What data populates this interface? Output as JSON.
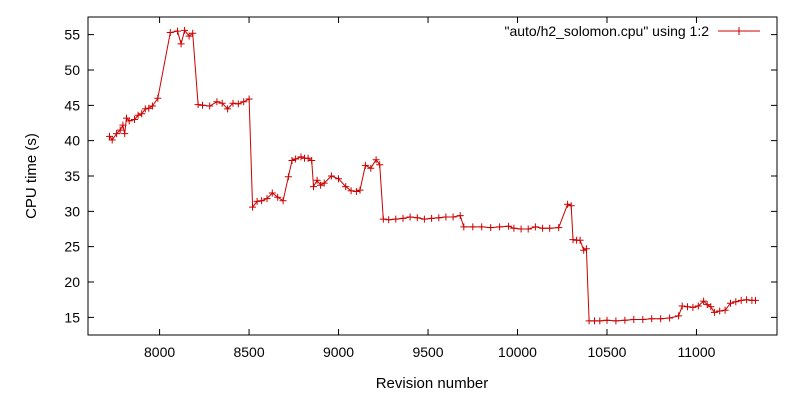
{
  "chart_data": {
    "type": "line",
    "title": "",
    "xlabel": "Revision number",
    "ylabel": "CPU time (s)",
    "xlim": [
      7600,
      11450
    ],
    "ylim": [
      12.5,
      57.5
    ],
    "xticks": [
      8000,
      8500,
      9000,
      9500,
      10000,
      10500,
      11000
    ],
    "yticks": [
      15,
      20,
      25,
      30,
      35,
      40,
      45,
      50,
      55
    ],
    "grid": false,
    "legend_position": "top-right",
    "series": [
      {
        "name": "\"auto/h2_solomon.cpu\" using 1:2",
        "color": "#cc0000",
        "marker": "plus",
        "points": [
          [
            7720,
            40.6
          ],
          [
            7735,
            40.1
          ],
          [
            7760,
            41.0
          ],
          [
            7780,
            41.5
          ],
          [
            7795,
            42.2
          ],
          [
            7805,
            41.0
          ],
          [
            7815,
            43.2
          ],
          [
            7830,
            42.8
          ],
          [
            7860,
            43.0
          ],
          [
            7880,
            43.6
          ],
          [
            7900,
            43.8
          ],
          [
            7920,
            44.5
          ],
          [
            7940,
            44.6
          ],
          [
            7960,
            44.9
          ],
          [
            7990,
            46.0
          ],
          [
            8060,
            55.3
          ],
          [
            8100,
            55.5
          ],
          [
            8120,
            53.7
          ],
          [
            8140,
            55.6
          ],
          [
            8165,
            54.8
          ],
          [
            8185,
            55.2
          ],
          [
            8215,
            45.1
          ],
          [
            8240,
            45.0
          ],
          [
            8280,
            44.9
          ],
          [
            8320,
            45.5
          ],
          [
            8350,
            45.3
          ],
          [
            8380,
            44.5
          ],
          [
            8410,
            45.3
          ],
          [
            8440,
            45.2
          ],
          [
            8470,
            45.5
          ],
          [
            8500,
            45.9
          ],
          [
            8520,
            30.6
          ],
          [
            8545,
            31.4
          ],
          [
            8570,
            31.5
          ],
          [
            8600,
            31.8
          ],
          [
            8630,
            32.6
          ],
          [
            8660,
            32.0
          ],
          [
            8690,
            31.5
          ],
          [
            8720,
            34.9
          ],
          [
            8740,
            37.2
          ],
          [
            8760,
            37.4
          ],
          [
            8790,
            37.7
          ],
          [
            8810,
            37.5
          ],
          [
            8830,
            37.5
          ],
          [
            8850,
            37.2
          ],
          [
            8860,
            33.5
          ],
          [
            8880,
            34.4
          ],
          [
            8900,
            33.7
          ],
          [
            8920,
            34.0
          ],
          [
            8960,
            35.0
          ],
          [
            9000,
            34.6
          ],
          [
            9040,
            33.5
          ],
          [
            9070,
            32.9
          ],
          [
            9100,
            32.8
          ],
          [
            9120,
            33.0
          ],
          [
            9150,
            36.5
          ],
          [
            9180,
            36.1
          ],
          [
            9210,
            37.3
          ],
          [
            9230,
            36.6
          ],
          [
            9250,
            28.9
          ],
          [
            9280,
            28.8
          ],
          [
            9320,
            28.9
          ],
          [
            9360,
            29.0
          ],
          [
            9400,
            29.2
          ],
          [
            9440,
            29.1
          ],
          [
            9480,
            28.9
          ],
          [
            9520,
            29.0
          ],
          [
            9560,
            29.1
          ],
          [
            9600,
            29.2
          ],
          [
            9640,
            29.2
          ],
          [
            9680,
            29.4
          ],
          [
            9700,
            27.8
          ],
          [
            9750,
            27.8
          ],
          [
            9800,
            27.8
          ],
          [
            9850,
            27.7
          ],
          [
            9900,
            27.8
          ],
          [
            9950,
            27.9
          ],
          [
            9980,
            27.6
          ],
          [
            10020,
            27.5
          ],
          [
            10060,
            27.5
          ],
          [
            10100,
            27.8
          ],
          [
            10140,
            27.6
          ],
          [
            10180,
            27.6
          ],
          [
            10230,
            27.7
          ],
          [
            10280,
            31.0
          ],
          [
            10300,
            30.8
          ],
          [
            10310,
            26.0
          ],
          [
            10330,
            25.9
          ],
          [
            10350,
            25.9
          ],
          [
            10370,
            24.5
          ],
          [
            10385,
            24.7
          ],
          [
            10400,
            14.5
          ],
          [
            10430,
            14.5
          ],
          [
            10460,
            14.5
          ],
          [
            10500,
            14.6
          ],
          [
            10550,
            14.5
          ],
          [
            10600,
            14.6
          ],
          [
            10650,
            14.7
          ],
          [
            10700,
            14.7
          ],
          [
            10750,
            14.8
          ],
          [
            10800,
            14.8
          ],
          [
            10850,
            14.9
          ],
          [
            10900,
            15.2
          ],
          [
            10920,
            16.6
          ],
          [
            10950,
            16.5
          ],
          [
            10980,
            16.4
          ],
          [
            11010,
            16.6
          ],
          [
            11040,
            17.3
          ],
          [
            11060,
            16.8
          ],
          [
            11080,
            16.5
          ],
          [
            11100,
            15.7
          ],
          [
            11130,
            15.9
          ],
          [
            11160,
            16.0
          ],
          [
            11190,
            17.0
          ],
          [
            11220,
            17.2
          ],
          [
            11250,
            17.4
          ],
          [
            11280,
            17.5
          ],
          [
            11310,
            17.4
          ],
          [
            11330,
            17.4
          ]
        ]
      }
    ]
  }
}
